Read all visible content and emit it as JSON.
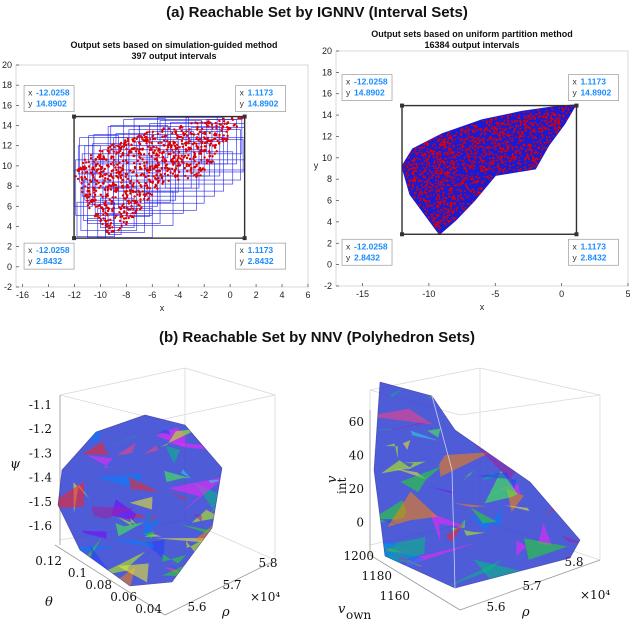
{
  "figure": {
    "heading_a": "(a) Reachable Set by IGNNV (Interval Sets)",
    "heading_b": "(b) Reachable Set by NNV (Polyhedron Sets)"
  },
  "colors": {
    "bound_box": "#303030",
    "interval_boxes": "#1f1fe6",
    "samples": "#e00000",
    "blue_fill": "#1a1ad0",
    "tooltip_text": "#1a8cff"
  },
  "chart_data": [
    {
      "type": "scatter",
      "title": [
        "Output sets based on simulation-guided method",
        "397 output intervals"
      ],
      "xlabel": "x",
      "ylabel": "",
      "xlim": [
        -16.5,
        6
      ],
      "ylim": [
        -2,
        20
      ],
      "xticks": [
        -16,
        -14,
        -12,
        -10,
        -8,
        -6,
        -4,
        -2,
        0,
        2,
        4,
        6
      ],
      "yticks": [
        -2,
        0,
        2,
        4,
        6,
        8,
        10,
        12,
        14,
        16,
        18,
        20
      ],
      "grid": false,
      "bounding_box": {
        "x": [
          -12.0258,
          1.1173
        ],
        "y": [
          2.8432,
          14.8902
        ]
      },
      "boxes": [
        [
          -11.8,
          -8.9,
          3.0,
          6.4
        ],
        [
          -11.5,
          -7.2,
          3.6,
          7.9
        ],
        [
          -11.0,
          -5.4,
          4.3,
          9.3
        ],
        [
          -10.4,
          -3.6,
          5.3,
          10.4
        ],
        [
          -9.8,
          -2.0,
          6.3,
          11.6
        ],
        [
          -9.0,
          -0.5,
          7.5,
          12.8
        ],
        [
          -7.8,
          0.8,
          8.6,
          13.6
        ],
        [
          -6.2,
          1.1,
          9.6,
          14.2
        ],
        [
          -11.9,
          -6.0,
          5.1,
          10.6
        ],
        [
          -11.2,
          -4.2,
          6.6,
          12.0
        ],
        [
          -10.5,
          -2.4,
          7.8,
          13.1
        ],
        [
          -9.4,
          -0.8,
          9.0,
          13.9
        ],
        [
          -8.2,
          0.5,
          10.2,
          14.6
        ],
        [
          -11.6,
          -7.8,
          8.4,
          12.8
        ],
        [
          -10.2,
          -6.0,
          2.9,
          5.8
        ],
        [
          -9.0,
          -4.4,
          4.1,
          7.5
        ],
        [
          -7.6,
          -2.6,
          5.6,
          9.0
        ],
        [
          -6.4,
          -1.2,
          7.0,
          10.4
        ],
        [
          -5.2,
          0.2,
          8.2,
          11.4
        ],
        [
          -4.0,
          1.0,
          9.4,
          12.6
        ],
        [
          -3.0,
          1.1,
          10.6,
          13.8
        ],
        [
          -11.3,
          -9.0,
          4.6,
          8.6
        ],
        [
          -10.8,
          -8.2,
          6.2,
          10.2
        ],
        [
          -9.6,
          -6.6,
          3.4,
          8.0
        ],
        [
          -8.6,
          -5.6,
          6.0,
          11.0
        ],
        [
          -7.2,
          -4.0,
          7.4,
          12.4
        ],
        [
          -6.0,
          -2.8,
          9.0,
          13.4
        ],
        [
          -4.6,
          -1.4,
          10.4,
          14.3
        ],
        [
          -11.7,
          -10.0,
          9.2,
          12.0
        ],
        [
          -10.9,
          -8.6,
          10.4,
          13.0
        ],
        [
          -9.2,
          -7.0,
          11.2,
          14.0
        ],
        [
          -7.4,
          -5.0,
          12.0,
          14.7
        ],
        [
          -5.6,
          -3.2,
          12.6,
          14.8
        ],
        [
          -3.4,
          -0.6,
          12.4,
          14.8
        ],
        [
          -1.8,
          0.9,
          11.2,
          14.6
        ],
        [
          -11.0,
          -9.6,
          2.9,
          4.8
        ],
        [
          -10.0,
          -7.4,
          3.9,
          6.8
        ],
        [
          -8.0,
          -6.2,
          5.0,
          8.4
        ],
        [
          -6.6,
          -4.6,
          6.4,
          9.8
        ],
        [
          -5.0,
          -3.0,
          7.8,
          11.2
        ],
        [
          -3.6,
          -1.6,
          9.0,
          12.2
        ],
        [
          -2.2,
          -0.2,
          10.2,
          13.4
        ],
        [
          -12.0,
          -10.6,
          6.0,
          9.6
        ],
        [
          -11.4,
          -9.4,
          7.0,
          11.2
        ],
        [
          -10.6,
          -8.0,
          8.4,
          12.2
        ],
        [
          -8.8,
          -6.4,
          9.6,
          13.2
        ],
        [
          -7.0,
          -4.8,
          10.8,
          14.0
        ],
        [
          -5.4,
          -2.2,
          11.4,
          14.5
        ],
        [
          -1.0,
          1.1,
          12.8,
          14.9
        ],
        [
          -9.4,
          -8.4,
          3.2,
          5.2
        ]
      ],
      "tooltips": [
        {
          "corner": "top-left",
          "x_label": "x",
          "x": "-12.0258",
          "y_label": "y",
          "y": "14.8902"
        },
        {
          "corner": "top-right",
          "x_label": "x",
          "x": "1.1173",
          "y_label": "y",
          "y": "14.8902"
        },
        {
          "corner": "bottom-left",
          "x_label": "x",
          "x": "-12.0258",
          "y_label": "y",
          "y": "2.8432"
        },
        {
          "corner": "bottom-right",
          "x_label": "x",
          "x": "1.1173",
          "y_label": "y",
          "y": "2.8432"
        }
      ]
    },
    {
      "type": "scatter",
      "title": [
        "Output sets based on uniform partition method",
        "16384 output intervals"
      ],
      "xlabel": "x",
      "ylabel": "y",
      "xlim": [
        -17,
        5
      ],
      "ylim": [
        -2,
        20
      ],
      "xticks": [
        -15,
        -10,
        -5,
        0,
        5
      ],
      "yticks": [
        -2,
        0,
        2,
        4,
        6,
        8,
        10,
        12,
        14,
        16,
        18,
        20
      ],
      "grid": false,
      "bounding_box": {
        "x": [
          -12.0258,
          1.1173
        ],
        "y": [
          2.8432,
          14.8902
        ]
      },
      "tooltips": [
        {
          "corner": "top-left",
          "x_label": "x",
          "x": "-12.0258",
          "y_label": "y",
          "y": "14.8902"
        },
        {
          "corner": "top-right",
          "x_label": "x",
          "x": "1.1173",
          "y_label": "y",
          "y": "14.8902"
        },
        {
          "corner": "bottom-left",
          "x_label": "x",
          "x": "-12.0258",
          "y_label": "y",
          "y": "2.8432"
        },
        {
          "corner": "bottom-right",
          "x_label": "x",
          "x": "1.1173",
          "y_label": "y",
          "y": "2.8432"
        }
      ]
    },
    {
      "type": "scatter3d",
      "axes": {
        "vertical": {
          "label": "ψ",
          "ticks": [
            "-1.1",
            "-1.2",
            "-1.3",
            "-1.4",
            "-1.5",
            "-1.6"
          ]
        },
        "left": {
          "label": "θ",
          "ticks": [
            "0.12",
            "0.1",
            "0.08",
            "0.06",
            "0.04"
          ]
        },
        "right": {
          "label": "ρ",
          "ticks": [
            "5.6",
            "5.7",
            "5.8"
          ],
          "multiplier": "×10⁴"
        }
      }
    },
    {
      "type": "scatter3d",
      "axes": {
        "vertical": {
          "label": "v",
          "subscript": "int",
          "ticks": [
            "60",
            "40",
            "20",
            "0"
          ]
        },
        "left": {
          "label": "v",
          "subscript": "own",
          "ticks": [
            "1200",
            "1180",
            "1160"
          ]
        },
        "right": {
          "label": "ρ",
          "ticks": [
            "5.6",
            "5.7",
            "5.8"
          ],
          "multiplier": "×10⁴"
        }
      }
    }
  ]
}
